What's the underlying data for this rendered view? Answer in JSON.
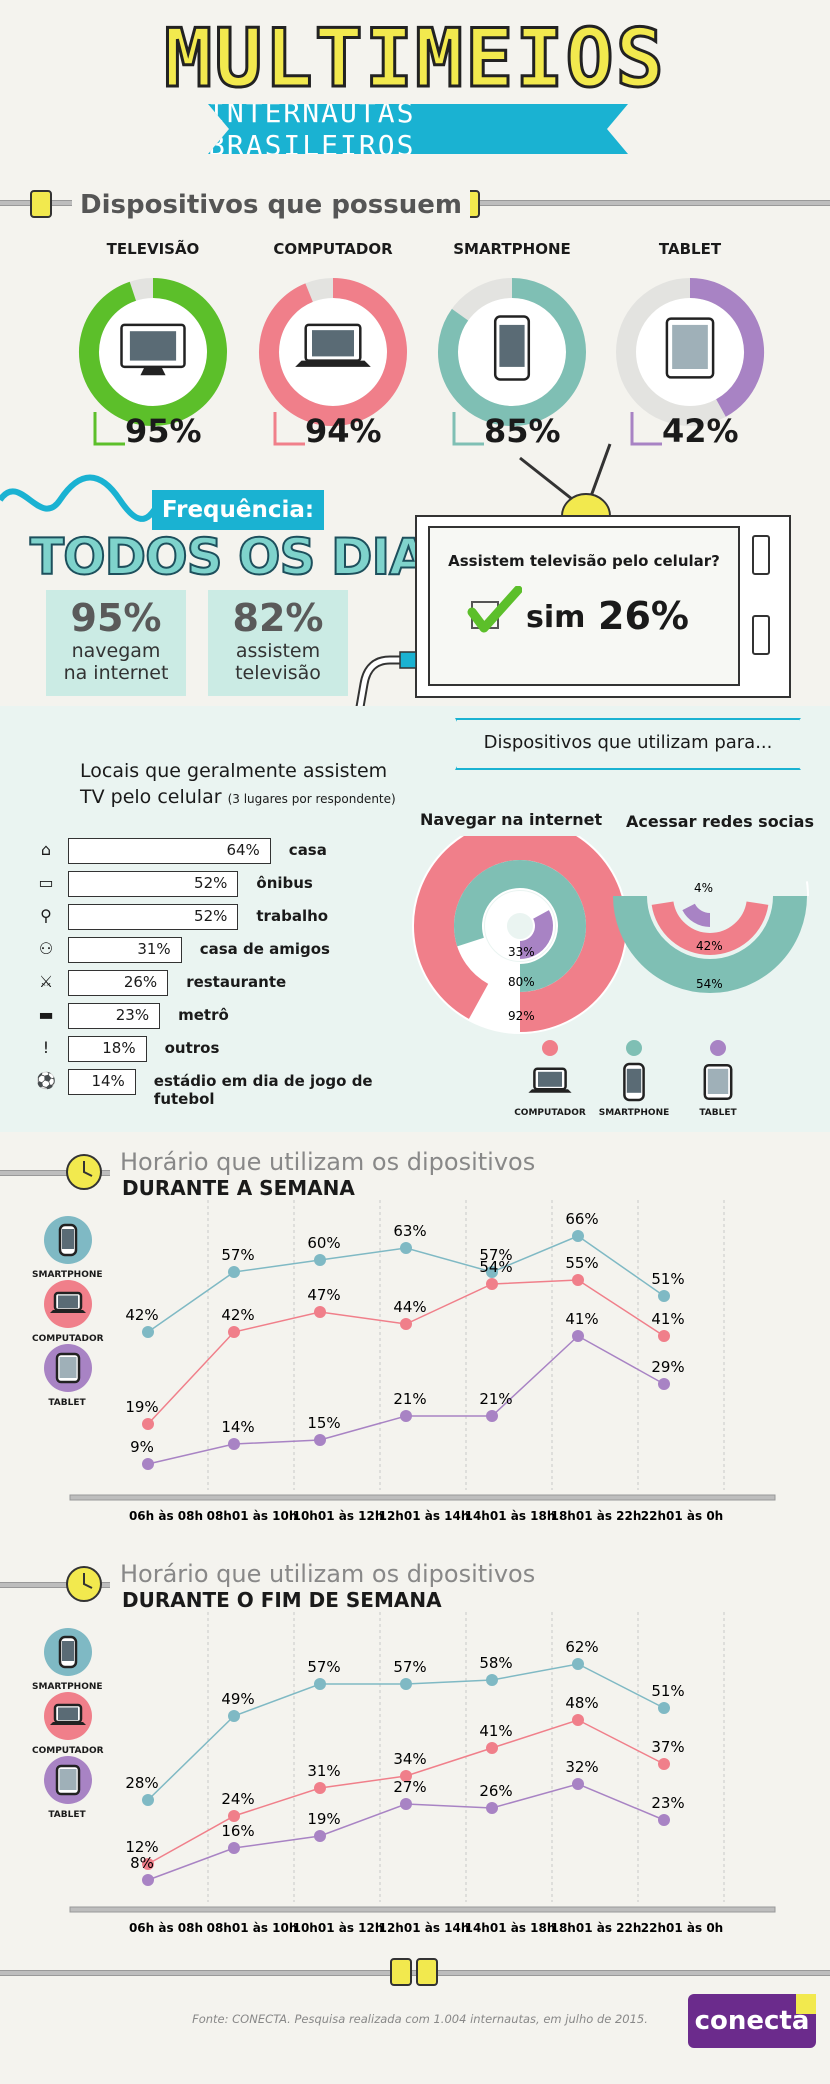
{
  "header": {
    "title": "MULTIMEIOS",
    "subtitle": "INTERNAUTAS BRASILEIROS"
  },
  "devices_section": {
    "heading": "Dispositivos que possuem",
    "items": [
      {
        "label": "TELEVISÃO",
        "pct": "95%",
        "value": 95,
        "color": "#5cbf2a",
        "icon": "tv-icon"
      },
      {
        "label": "COMPUTADOR",
        "pct": "94%",
        "value": 94,
        "color": "#f07f8a",
        "icon": "laptop-icon"
      },
      {
        "label": "SMARTPHONE",
        "pct": "85%",
        "value": 85,
        "color": "#7fbfb4",
        "icon": "smartphone-icon"
      },
      {
        "label": "TABLET",
        "pct": "42%",
        "value": 42,
        "color": "#a883c4",
        "icon": "tablet-icon"
      }
    ]
  },
  "frequency": {
    "heading": "Frequência:",
    "every_day": "TODOS OS DIAS",
    "box1": {
      "pct": "95%",
      "line1": "navegam",
      "line2": "na internet"
    },
    "box2": {
      "pct": "82%",
      "line1": "assistem",
      "line2": "televisão"
    },
    "tv_question": "Assistem televisão pelo celular?",
    "tv_answer": "sim",
    "tv_pct": "26%"
  },
  "locations": {
    "title_line1": "Locais que geralmente assistem",
    "title_line2": "TV pelo celular",
    "note": "(3 lugares por respondente)",
    "rows": [
      {
        "pct": "64%",
        "value": 64,
        "label": "casa",
        "icon": "house-icon"
      },
      {
        "pct": "52%",
        "value": 52,
        "label": "ônibus",
        "icon": "bus-icon"
      },
      {
        "pct": "52%",
        "value": 52,
        "label": "trabalho",
        "icon": "paperclip-icon"
      },
      {
        "pct": "31%",
        "value": 31,
        "label": "casa de amigos",
        "icon": "people-icon"
      },
      {
        "pct": "26%",
        "value": 26,
        "label": "restaurante",
        "icon": "cutlery-icon"
      },
      {
        "pct": "23%",
        "value": 23,
        "label": "metrô",
        "icon": "train-icon"
      },
      {
        "pct": "18%",
        "value": 18,
        "label": "outros",
        "icon": "exclamation-icon"
      },
      {
        "pct": "14%",
        "value": 14,
        "label": "estádio em dia de jogo de futebol",
        "icon": "football-icon"
      }
    ]
  },
  "usage": {
    "heading": "Dispositivos que utilizam para...",
    "browse_title": "Navegar na internet",
    "social_title": "Acessar redes socias",
    "browse": {
      "computador": "92%",
      "smartphone": "80%",
      "tablet": "33%"
    },
    "social": {
      "smartphone": "54%",
      "computador": "42%",
      "tablet": "4%"
    },
    "legend": [
      "COMPUTADOR",
      "SMARTPHONE",
      "TABLET"
    ]
  },
  "legend_caps": {
    "smartphone": "SMARTPHONE",
    "computador": "COMPUTADOR",
    "tablet": "TABLET"
  },
  "colors": {
    "smartphone": "#7fb9c4",
    "computador": "#f07f8a",
    "tablet": "#a883c4",
    "teal": "#7fbfb4",
    "yellow": "#f2e94e",
    "cyan": "#1ab2d2"
  },
  "chart_data": [
    {
      "type": "line",
      "title": "Horário que utilizam os dipositivos",
      "subtitle": "DURANTE A SEMANA",
      "categories": [
        "06h às 08h",
        "08h01 às 10h",
        "10h01 às 12h",
        "12h01 às 14h",
        "14h01 às 18h",
        "18h01 às 22h",
        "22h01 às 0h"
      ],
      "series": [
        {
          "name": "SMARTPHONE",
          "values": [
            42,
            57,
            60,
            63,
            57,
            66,
            51
          ]
        },
        {
          "name": "COMPUTADOR",
          "values": [
            19,
            42,
            47,
            44,
            54,
            55,
            41
          ]
        },
        {
          "name": "TABLET",
          "values": [
            9,
            14,
            15,
            21,
            21,
            41,
            29
          ]
        }
      ]
    },
    {
      "type": "line",
      "title": "Horário que utilizam os dipositivos",
      "subtitle": "DURANTE O FIM DE SEMANA",
      "categories": [
        "06h às 08h",
        "08h01 às 10h",
        "10h01 às 12h",
        "12h01 às 14h",
        "14h01 às 18h",
        "18h01 às 22h",
        "22h01 às 0h"
      ],
      "series": [
        {
          "name": "SMARTPHONE",
          "values": [
            28,
            49,
            57,
            57,
            58,
            62,
            51
          ]
        },
        {
          "name": "COMPUTADOR",
          "values": [
            12,
            24,
            31,
            34,
            41,
            48,
            37
          ]
        },
        {
          "name": "TABLET",
          "values": [
            8,
            16,
            19,
            27,
            26,
            32,
            23
          ]
        }
      ]
    }
  ],
  "footer": {
    "source": "Fonte: CONECTA. Pesquisa realizada com 1.004 internautas, em julho de 2015.",
    "brand": "conecta"
  }
}
